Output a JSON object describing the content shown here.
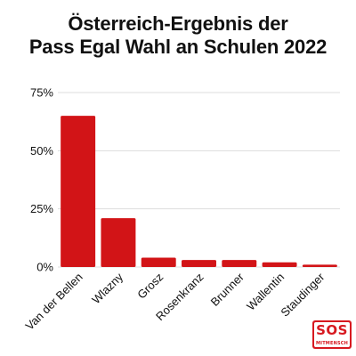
{
  "title_line1": "Österreich-Ergebnis der",
  "title_line2": "Pass Egal Wahl an Schulen 2022",
  "logo": {
    "main": "SOS",
    "sub": "MITMENSCH"
  },
  "colors": {
    "bar": "#d21417",
    "grid": "#dddddd",
    "text": "#111111"
  },
  "chart_data": {
    "type": "bar",
    "categories": [
      "Van der Bellen",
      "Wlazny",
      "Grosz",
      "Rosenkranz",
      "Brunner",
      "Wallentin",
      "Staudinger"
    ],
    "values": [
      65,
      21,
      4,
      3,
      3,
      2,
      1
    ],
    "unit": "%",
    "ylim": [
      0,
      75
    ],
    "yticks": [
      0,
      25,
      50,
      75
    ],
    "ytick_labels": [
      "0%",
      "25%",
      "50%",
      "75%"
    ],
    "grid": true,
    "xlabel": "",
    "ylabel": ""
  }
}
